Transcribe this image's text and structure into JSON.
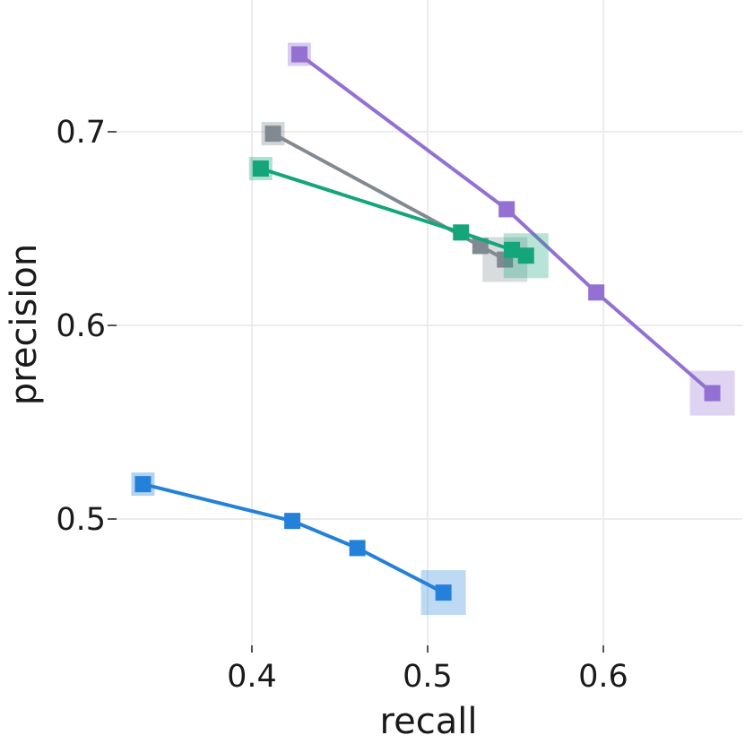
{
  "chart_data": {
    "type": "line",
    "title": "",
    "xlabel": "recall",
    "ylabel": "precision",
    "xlim": [
      0.325,
      0.685
    ],
    "ylim": [
      0.43,
      0.75
    ],
    "xticks": [
      0.4,
      0.5,
      0.6
    ],
    "yticks": [
      0.5,
      0.6,
      0.7
    ],
    "xtick_labels": [
      "0.4",
      "0.5",
      "0.6"
    ],
    "ytick_labels": [
      "0.5",
      "0.6",
      "0.7"
    ],
    "grid": true,
    "marker": "square",
    "series": [
      {
        "color": "#9370d2",
        "x": [
          0.427,
          0.545,
          0.596,
          0.662
        ],
        "y": [
          0.74,
          0.66,
          0.617,
          0.565
        ],
        "start_marker_highlight": true,
        "end_marker_highlight": true
      },
      {
        "color": "#818a92",
        "x": [
          0.412,
          0.53,
          0.544
        ],
        "y": [
          0.699,
          0.641,
          0.634
        ],
        "start_marker_highlight": true,
        "end_marker_highlight": true
      },
      {
        "color": "#14a67a",
        "x": [
          0.405,
          0.519,
          0.548,
          0.556
        ],
        "y": [
          0.681,
          0.648,
          0.639,
          0.636
        ],
        "start_marker_highlight": true,
        "end_marker_highlight": true
      },
      {
        "color": "#2481da",
        "x": [
          0.338,
          0.423,
          0.46,
          0.509
        ],
        "y": [
          0.518,
          0.499,
          0.485,
          0.462
        ],
        "start_marker_highlight": true,
        "end_marker_highlight": true
      }
    ]
  }
}
